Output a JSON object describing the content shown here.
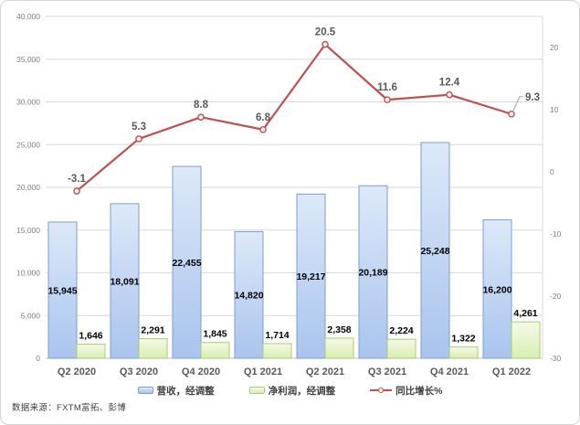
{
  "source_note": "数据来源：FXTM富拓、彭博",
  "chart_data": {
    "type": "combo-bar-line",
    "categories": [
      "Q2 2020",
      "Q3 2020",
      "Q4 2020",
      "Q1 2021",
      "Q2 2021",
      "Q3 2021",
      "Q4 2021",
      "Q1 2022"
    ],
    "series": [
      {
        "name": "营收，经调整",
        "type": "bar",
        "axis": "left",
        "values": [
          15945,
          18091,
          22455,
          14820,
          19217,
          20189,
          25248,
          16200
        ],
        "labels": [
          "15,945",
          "18,091",
          "22,455",
          "14,820",
          "19,217",
          "20,189",
          "25,248",
          "16,200"
        ]
      },
      {
        "name": "净利润，经调整",
        "type": "bar",
        "axis": "left",
        "values": [
          1646,
          2291,
          1845,
          1714,
          2358,
          2224,
          1322,
          4261
        ],
        "labels": [
          "1,646",
          "2,291",
          "1,845",
          "1,714",
          "2,358",
          "2,224",
          "1,322",
          "4,261"
        ]
      },
      {
        "name": "同比增长%",
        "type": "line",
        "axis": "right",
        "values": [
          -3.1,
          5.3,
          8.8,
          6.8,
          20.5,
          11.6,
          12.4,
          9.3
        ],
        "labels": [
          "-3.1",
          "5.3",
          "8.8",
          "6.8",
          "20.5",
          "11.6",
          "12.4",
          "9.3"
        ]
      }
    ],
    "left_axis": {
      "min": 0,
      "max": 40000,
      "step": 5000,
      "tick_labels": [
        "0",
        "5,000",
        "10,000",
        "15,000",
        "20,000",
        "25,000",
        "30,000",
        "35,000",
        "40,000"
      ]
    },
    "right_axis": {
      "min": -30,
      "max": 25,
      "step": 10,
      "tick_labels": [
        "-30",
        "-20",
        "-10",
        "0",
        "10",
        "20"
      ]
    },
    "grid": true,
    "legend_position": "bottom",
    "colors": {
      "bar1_fill_top": "#dde9f8",
      "bar1_fill_bottom": "#a9c4ee",
      "bar1_border": "#7f9ed1",
      "bar2_fill_top": "#f4fae6",
      "bar2_fill_bottom": "#d9eeb3",
      "bar2_border": "#a9cc74",
      "line": "#c0504d",
      "marker_fill": "#fdf3f3",
      "leader": "#a6a6a6",
      "grid": "#d9d9d9",
      "axis_line": "#bfbfbf",
      "axis_text": "#7f7f7f",
      "category_text": "#595959",
      "line_label_text": "#595959",
      "bar_label_text": "#000000",
      "legend_text": "#404040",
      "source_text": "#404040"
    }
  }
}
